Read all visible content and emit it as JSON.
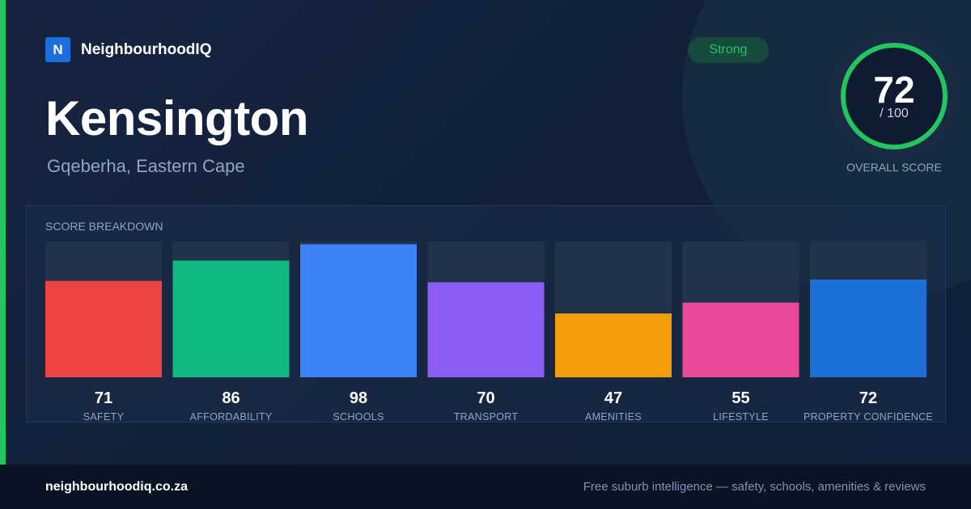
{
  "brand": {
    "logo_letter": "N",
    "name": "NeighbourhoodIQ"
  },
  "suburb": {
    "name": "Kensington",
    "location": "Gqeberha, Eastern Cape"
  },
  "rating": {
    "badge": "Strong",
    "badge_color": "#22c55e"
  },
  "overall": {
    "score": "72",
    "max_label": "/ 100",
    "label": "OVERALL SCORE",
    "fraction": 0.72,
    "ring_color": "#22c55e"
  },
  "chart_data": {
    "type": "bar",
    "title": "SCORE BREAKDOWN",
    "categories": [
      "SAFETY",
      "AFFORDABILITY",
      "SCHOOLS",
      "TRANSPORT",
      "AMENITIES",
      "LIFESTYLE",
      "PROPERTY CONFIDENCE"
    ],
    "values": [
      71,
      86,
      98,
      70,
      47,
      55,
      72
    ],
    "colors": [
      "#ef4444",
      "#10b981",
      "#3b82f6",
      "#8b5cf6",
      "#f59e0b",
      "#ec4899",
      "#1d6fd8"
    ],
    "ylim": [
      0,
      100
    ],
    "grid": false,
    "legend": "none"
  },
  "footer": {
    "url": "neighbourhoodiq.co.za",
    "tagline": "Free suburb intelligence — safety, schools, amenities & reviews"
  }
}
